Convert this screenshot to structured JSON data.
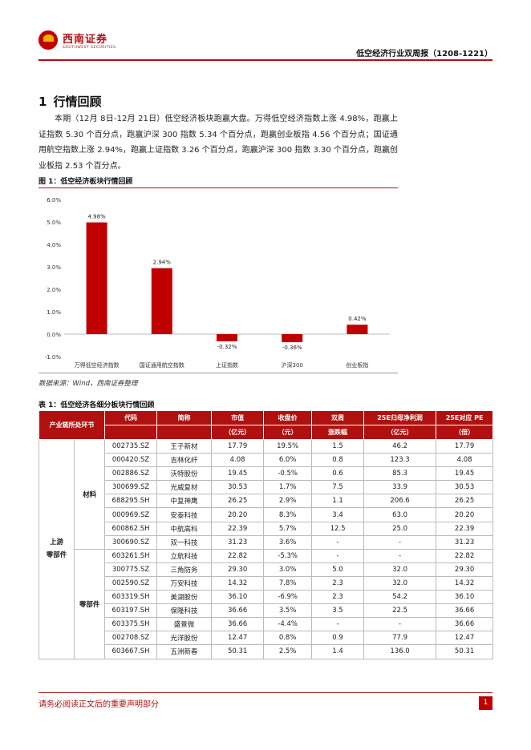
{
  "header": {
    "logo_cn": "西南证券",
    "logo_en": "SOUTHWEST SECURITIES",
    "report_title": "低空经济行业双周报（1208-1221）"
  },
  "section": {
    "number": "1",
    "title": "行情回顾",
    "paragraph": "本期（12月 8日-12月 21日）低空经济板块跑赢大盘。万得低空经济指数上涨 4.98%，跑赢上证指数 5.30 个百分点，跑赢沪深 300 指数 5.34 个百分点，跑赢创业板指 4.56 个百分点；国证通用航空指数上涨 2.94%，跑赢上证指数 3.26 个百分点，跑赢沪深 300 指数 3.30 个百分点，跑赢创业板指 2.53 个百分点。"
  },
  "figure": {
    "caption": "图 1：低空经济板块行情回顾",
    "source": "数据来源：Wind，西南证券整理"
  },
  "chart_data": {
    "type": "bar",
    "categories": [
      "万得低空经济指数",
      "国证通用航空指数",
      "上证指数",
      "沪深300",
      "创业板指"
    ],
    "values": [
      4.98,
      2.94,
      -0.32,
      -0.36,
      0.42
    ],
    "value_labels": [
      "4.98%",
      "2.94%",
      "-0.32%",
      "-0.36%",
      "0.42%"
    ],
    "yticks": [
      "-1.0%",
      "0.0%",
      "1.0%",
      "2.0%",
      "3.0%",
      "4.0%",
      "5.0%",
      "6.0%"
    ],
    "ylim": [
      -1,
      6
    ],
    "color": "#c00000",
    "grid": false,
    "legend": "none"
  },
  "table": {
    "caption": "表 1：低空经济各细分板块行情回顾",
    "headers": {
      "chain": "产业链所处环节",
      "code": "代码",
      "name": "简称",
      "mv1": "市值",
      "mv2": "（亿元）",
      "price1": "收盘价",
      "price2": "（元）",
      "chg1": "双周",
      "chg2": "涨跌幅",
      "np1": "25E归母净利润",
      "np2": "（亿元）",
      "pe1": "25E对应 PE",
      "pe2": "（倍）"
    },
    "chain_level1": "上游\n零部件",
    "group1_label": "材料",
    "group2_label": "零部件",
    "rows": [
      {
        "code": "002735.SZ",
        "name": "王子新材",
        "mv": "17.79",
        "price": "19.5%",
        "chg": "1.5",
        "np": "46.2",
        "pe": "17.79"
      },
      {
        "code": "000420.SZ",
        "name": "吉林化纤",
        "mv": "4.08",
        "price": "6.0%",
        "chg": "0.8",
        "np": "123.3",
        "pe": "4.08"
      },
      {
        "code": "002886.SZ",
        "name": "沃特股份",
        "mv": "19.45",
        "price": "-0.5%",
        "chg": "0.6",
        "np": "85.3",
        "pe": "19.45"
      },
      {
        "code": "300699.SZ",
        "name": "光威复材",
        "mv": "30.53",
        "price": "1.7%",
        "chg": "7.5",
        "np": "33.9",
        "pe": "30.53"
      },
      {
        "code": "688295.SH",
        "name": "中复神鹰",
        "mv": "26.25",
        "price": "2.9%",
        "chg": "1.1",
        "np": "206.6",
        "pe": "26.25"
      },
      {
        "code": "000969.SZ",
        "name": "安泰科技",
        "mv": "20.20",
        "price": "8.3%",
        "chg": "3.4",
        "np": "63.0",
        "pe": "20.20"
      },
      {
        "code": "600862.SH",
        "name": "中航高科",
        "mv": "22.39",
        "price": "5.7%",
        "chg": "12.5",
        "np": "25.0",
        "pe": "22.39"
      },
      {
        "code": "300690.SZ",
        "name": "双一科技",
        "mv": "31.23",
        "price": "3.6%",
        "chg": "-",
        "np": "-",
        "pe": "31.23"
      },
      {
        "code": "603261.SH",
        "name": "立航科技",
        "mv": "22.82",
        "price": "-5.3%",
        "chg": "-",
        "np": "-",
        "pe": "22.82"
      },
      {
        "code": "300775.SZ",
        "name": "三角防务",
        "mv": "29.30",
        "price": "3.0%",
        "chg": "5.0",
        "np": "32.0",
        "pe": "29.30"
      },
      {
        "code": "002590.SZ",
        "name": "万安科技",
        "mv": "14.32",
        "price": "7.8%",
        "chg": "2.3",
        "np": "32.0",
        "pe": "14.32"
      },
      {
        "code": "603319.SH",
        "name": "美湖股份",
        "mv": "36.10",
        "price": "-6.9%",
        "chg": "2.3",
        "np": "54.2",
        "pe": "36.10"
      },
      {
        "code": "603197.SH",
        "name": "保隆科技",
        "mv": "36.66",
        "price": "3.5%",
        "chg": "3.5",
        "np": "22.5",
        "pe": "36.66"
      },
      {
        "code": "603375.SH",
        "name": "盛景微",
        "mv": "36.66",
        "price": "-4.4%",
        "chg": "-",
        "np": "-",
        "pe": "36.66"
      },
      {
        "code": "002708.SZ",
        "name": "光洋股份",
        "mv": "12.47",
        "price": "0.8%",
        "chg": "0.9",
        "np": "77.9",
        "pe": "12.47"
      },
      {
        "code": "603667.SH",
        "name": "五洲新春",
        "mv": "50.31",
        "price": "2.5%",
        "chg": "1.4",
        "np": "136.0",
        "pe": "50.31"
      }
    ]
  },
  "footer": {
    "disclaimer": "请务必阅读正文后的重要声明部分",
    "page": "1"
  }
}
